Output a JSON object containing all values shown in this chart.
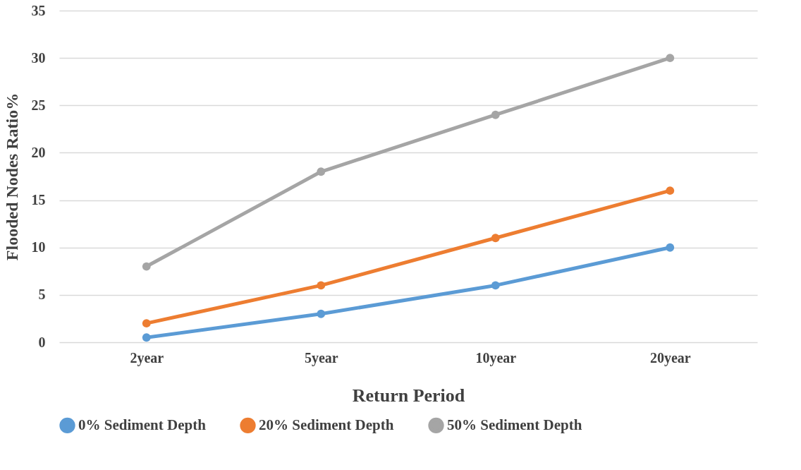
{
  "chart_data": {
    "type": "line",
    "xlabel": "Return Period",
    "ylabel": "Flooded Nodes Ratio%",
    "categories": [
      "2year",
      "5year",
      "10year",
      "20year"
    ],
    "series": [
      {
        "name": "0% Sediment Depth",
        "color": "#5b9bd5",
        "values": [
          0.5,
          3,
          6,
          10
        ]
      },
      {
        "name": "20% Sediment Depth",
        "color": "#ed7d31",
        "values": [
          2,
          6,
          11,
          16
        ]
      },
      {
        "name": "50% Sediment Depth",
        "color": "#a5a5a5",
        "values": [
          8,
          18,
          24,
          30
        ]
      }
    ],
    "ylim": [
      0,
      35
    ],
    "yticks": [
      0,
      5,
      10,
      15,
      20,
      25,
      30,
      35
    ],
    "grid": "y",
    "legend": "bottom",
    "marker": "circle",
    "line_style": "solid"
  }
}
